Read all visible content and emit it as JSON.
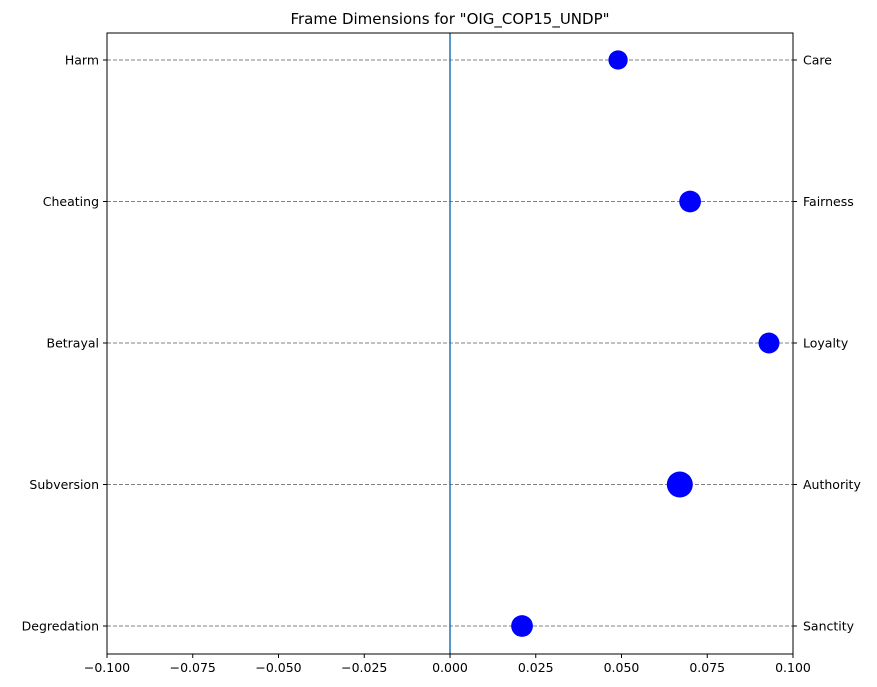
{
  "chart_data": {
    "type": "scatter",
    "title": "Frame Dimensions for \"OIG_COP15_UNDP\"",
    "xlabel": "",
    "ylabel": "",
    "xlim": [
      -0.1,
      0.1
    ],
    "x_ticks": [
      -0.1,
      -0.075,
      -0.05,
      -0.025,
      0.0,
      0.025,
      0.05,
      0.075,
      0.1
    ],
    "x_tick_labels": [
      "−0.100",
      "−0.075",
      "−0.050",
      "−0.025",
      "0.000",
      "0.025",
      "0.050",
      "0.075",
      "0.100"
    ],
    "left_labels": [
      "Harm",
      "Cheating",
      "Betrayal",
      "Subversion",
      "Degredation"
    ],
    "right_labels": [
      "Care",
      "Fairness",
      "Loyalty",
      "Authority",
      "Sanctity"
    ],
    "values": [
      0.049,
      0.07,
      0.093,
      0.067,
      0.021
    ],
    "relative_sizes": [
      0.55,
      0.7,
      0.65,
      1.0,
      0.7
    ],
    "reference_line_x": 0.0,
    "grid": "horizontal dashed",
    "colors": {
      "point": "#0000ff",
      "reference_line": "#1f77b4",
      "grid": "#808080"
    }
  }
}
